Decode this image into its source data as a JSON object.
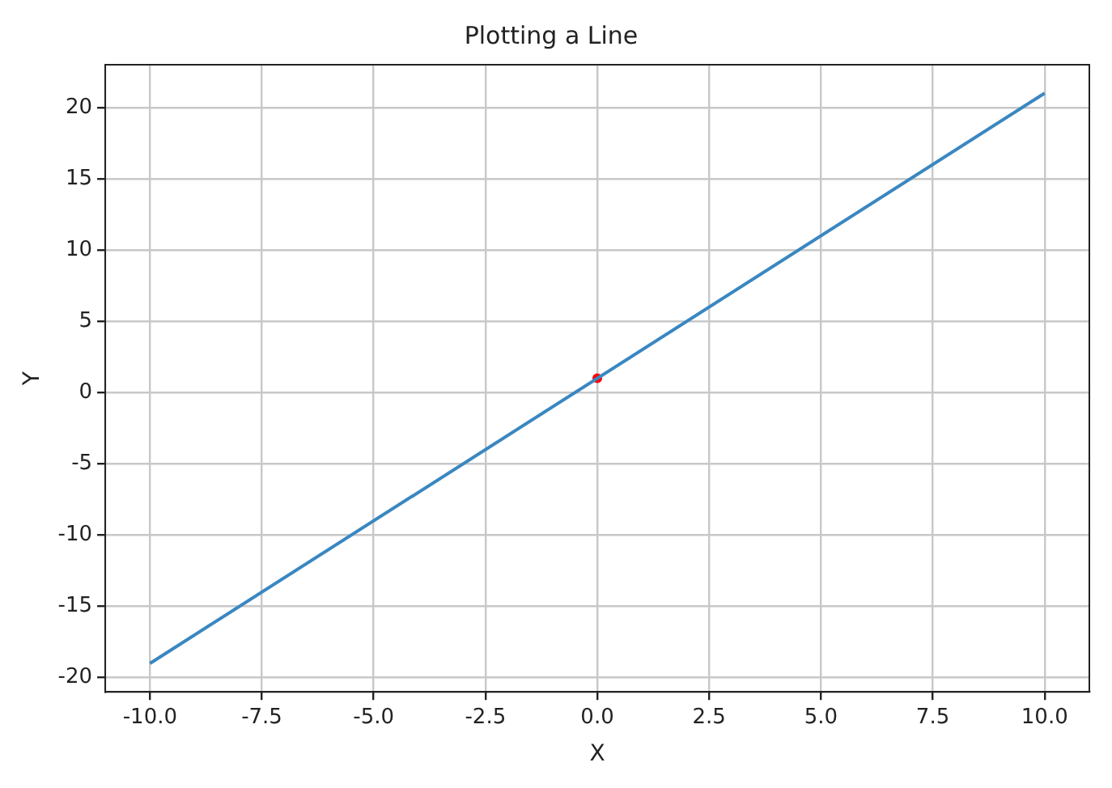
{
  "chart_data": {
    "type": "line",
    "title": "Plotting a Line",
    "xlabel": "X",
    "ylabel": "Y",
    "series": [
      {
        "color": "#3a87c1",
        "x": [
          -10,
          10
        ],
        "values": [
          -19,
          21
        ],
        "marker": "none",
        "line_style": "solid"
      },
      {
        "type": "scatter",
        "color": "#ff0000",
        "x": [
          0
        ],
        "values": [
          1
        ],
        "marker": "circle"
      }
    ],
    "xlim": [
      -11,
      11
    ],
    "xticks": [
      {
        "value": -10,
        "label": "-10.0"
      },
      {
        "value": -7.5,
        "label": "-7.5"
      },
      {
        "value": -5,
        "label": "-5.0"
      },
      {
        "value": -2.5,
        "label": "-2.5"
      },
      {
        "value": 0,
        "label": "0.0"
      },
      {
        "value": 2.5,
        "label": "2.5"
      },
      {
        "value": 5,
        "label": "5.0"
      },
      {
        "value": 7.5,
        "label": "7.5"
      },
      {
        "value": 10,
        "label": "10.0"
      }
    ],
    "ylim": [
      -21,
      23
    ],
    "yticks": [
      -20,
      -15,
      -10,
      -5,
      0,
      5,
      10,
      15,
      20
    ],
    "grid": true,
    "legend": false
  }
}
